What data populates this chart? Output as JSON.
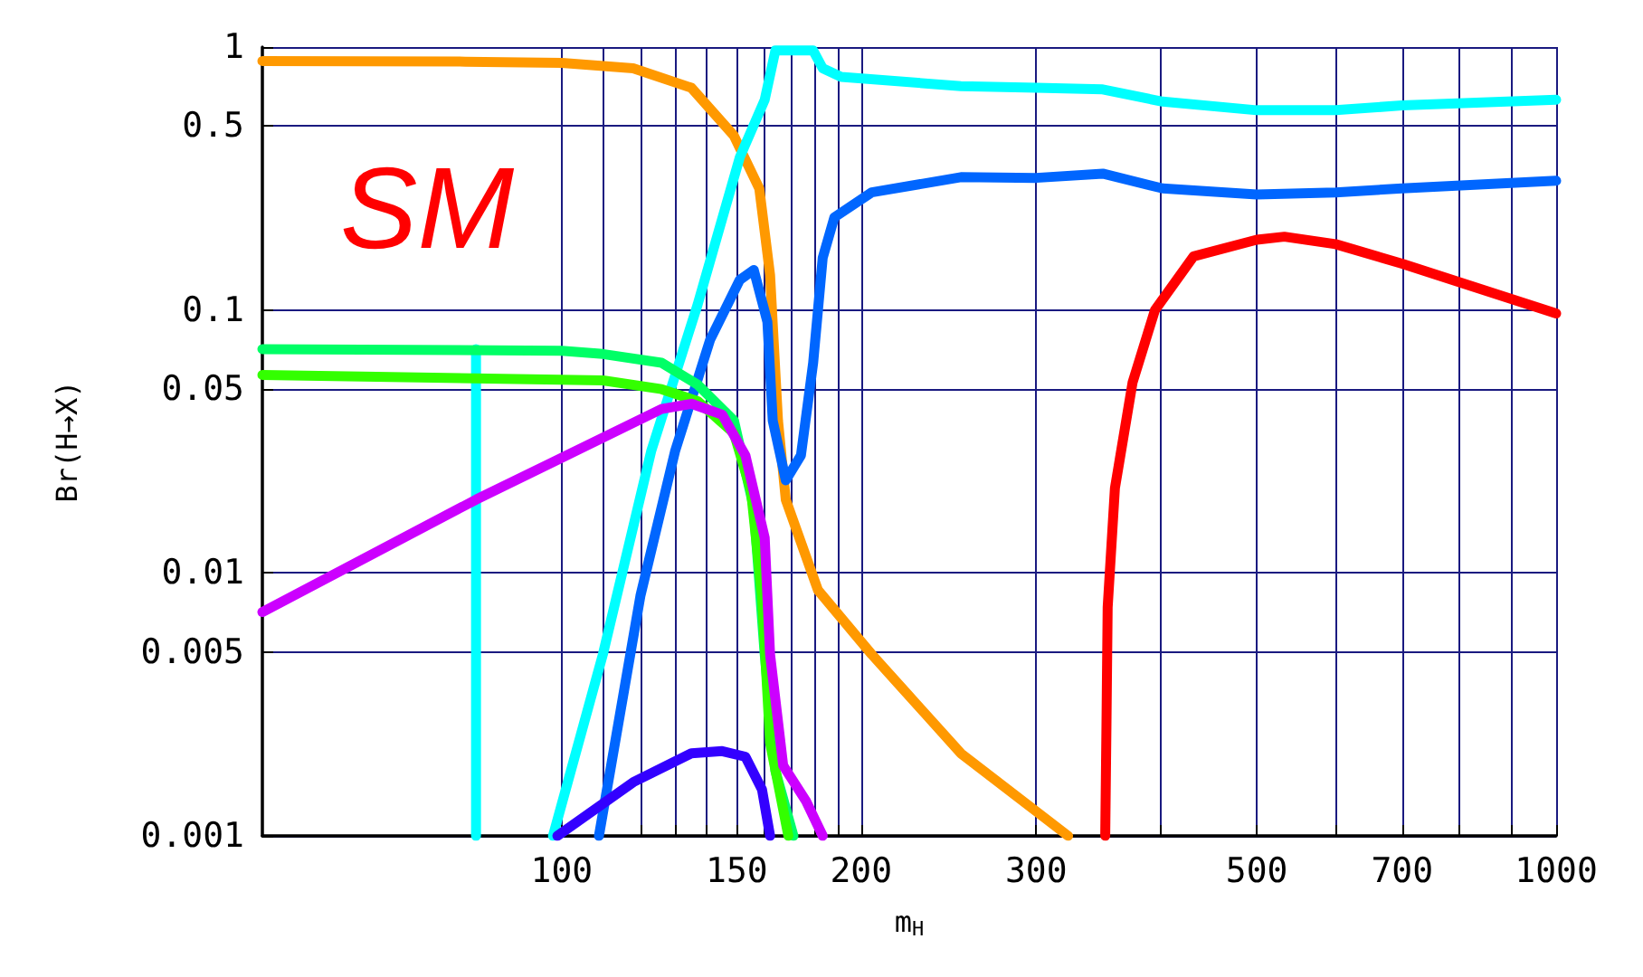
{
  "chart_data": {
    "type": "line",
    "xlabel": "m$_{H}$",
    "ylabel": "Br(H→X)",
    "annotations": [
      "SM"
    ],
    "log": "xy",
    "grid": true,
    "marker": "none",
    "line_style": "solid",
    "xlim": [
      50,
      1000
    ],
    "ylim": [
      0.001,
      1
    ],
    "xticks": [
      100,
      {
        "value": 110,
        "label": null
      },
      {
        "value": 120,
        "label": null
      },
      {
        "value": 130,
        "label": null
      },
      {
        "value": 140,
        "label": null
      },
      150,
      {
        "value": 160,
        "label": null
      },
      {
        "value": 170,
        "label": null
      },
      {
        "value": 180,
        "label": null
      },
      {
        "value": 190,
        "label": null
      },
      200,
      300,
      {
        "value": 400,
        "label": null
      },
      500,
      {
        "value": 600,
        "label": null
      },
      700,
      {
        "value": 800,
        "label": null
      },
      {
        "value": 900,
        "label": null
      },
      1000
    ],
    "yticks": [
      0.001,
      0.005,
      0.01,
      0.05,
      0.1,
      0.5,
      1
    ],
    "series": [
      {
        "color": "#ff9900",
        "x": [
          50,
          80,
          100,
          118,
          135,
          149,
          158,
          162,
          165,
          168,
          181,
          205,
          252,
          323
        ],
        "values": [
          0.885,
          0.88,
          0.87,
          0.83,
          0.7,
          0.46,
          0.29,
          0.136,
          0.038,
          0.019,
          0.0086,
          0.0049,
          0.00206,
          0.001
        ]
      },
      {
        "color": "#00ffff",
        "x": [
          98,
          110,
          123,
          137,
          151,
          160,
          164,
          179,
          183,
          191,
          252,
          300,
          350,
          402,
          500,
          600,
          700,
          1000
        ],
        "values": [
          0.001,
          0.0049,
          0.029,
          0.105,
          0.38,
          0.63,
          0.97,
          0.97,
          0.83,
          0.77,
          0.71,
          0.7,
          0.69,
          0.62,
          0.575,
          0.575,
          0.6,
          0.63
        ]
      },
      {
        "color": "#00ffff",
        "x": [
          82,
          82
        ],
        "values": [
          0.071,
          0.001
        ]
      },
      {
        "color": "#0066ff",
        "x": [
          109,
          120,
          130,
          141,
          151,
          156,
          161,
          163,
          168,
          174,
          179,
          183,
          188,
          205,
          252,
          300,
          350,
          402,
          500,
          600,
          700,
          1000
        ],
        "values": [
          0.001,
          0.0082,
          0.029,
          0.077,
          0.13,
          0.142,
          0.09,
          0.038,
          0.0225,
          0.028,
          0.063,
          0.158,
          0.225,
          0.28,
          0.32,
          0.318,
          0.33,
          0.29,
          0.275,
          0.28,
          0.29,
          0.31
        ]
      },
      {
        "color": "#ff0000",
        "x": [
          352,
          353,
          354,
          360,
          375,
          395,
          432,
          500,
          533,
          600,
          700,
          1000
        ],
        "values": [
          0.001,
          0.0026,
          0.0074,
          0.021,
          0.053,
          0.1,
          0.16,
          0.185,
          0.19,
          0.178,
          0.15,
          0.097
        ]
      },
      {
        "color": "#00ff66",
        "x": [
          50,
          100,
          110,
          126,
          137,
          149,
          156,
          160,
          164,
          171
        ],
        "values": [
          0.071,
          0.07,
          0.068,
          0.063,
          0.052,
          0.038,
          0.0177,
          0.0049,
          0.00177,
          0.001
        ]
      },
      {
        "color": "#33ff00",
        "x": [
          50,
          110,
          126,
          137,
          149,
          155,
          159,
          162,
          169
        ],
        "values": [
          0.0566,
          0.054,
          0.05,
          0.045,
          0.034,
          0.0205,
          0.0082,
          0.00226,
          0.001
        ]
      },
      {
        "color": "#cc00ff",
        "x": [
          50,
          82,
          126,
          135,
          145,
          153,
          160,
          162,
          167,
          176,
          183
        ],
        "values": [
          0.0071,
          0.019,
          0.042,
          0.044,
          0.04,
          0.028,
          0.0136,
          0.0049,
          0.00185,
          0.00136,
          0.001
        ]
      },
      {
        "color": "#3300ff",
        "x": [
          99,
          118,
          135,
          145,
          153,
          159,
          162
        ],
        "values": [
          0.001,
          0.0016,
          0.00206,
          0.0021,
          0.002,
          0.0015,
          0.001
        ]
      }
    ]
  }
}
